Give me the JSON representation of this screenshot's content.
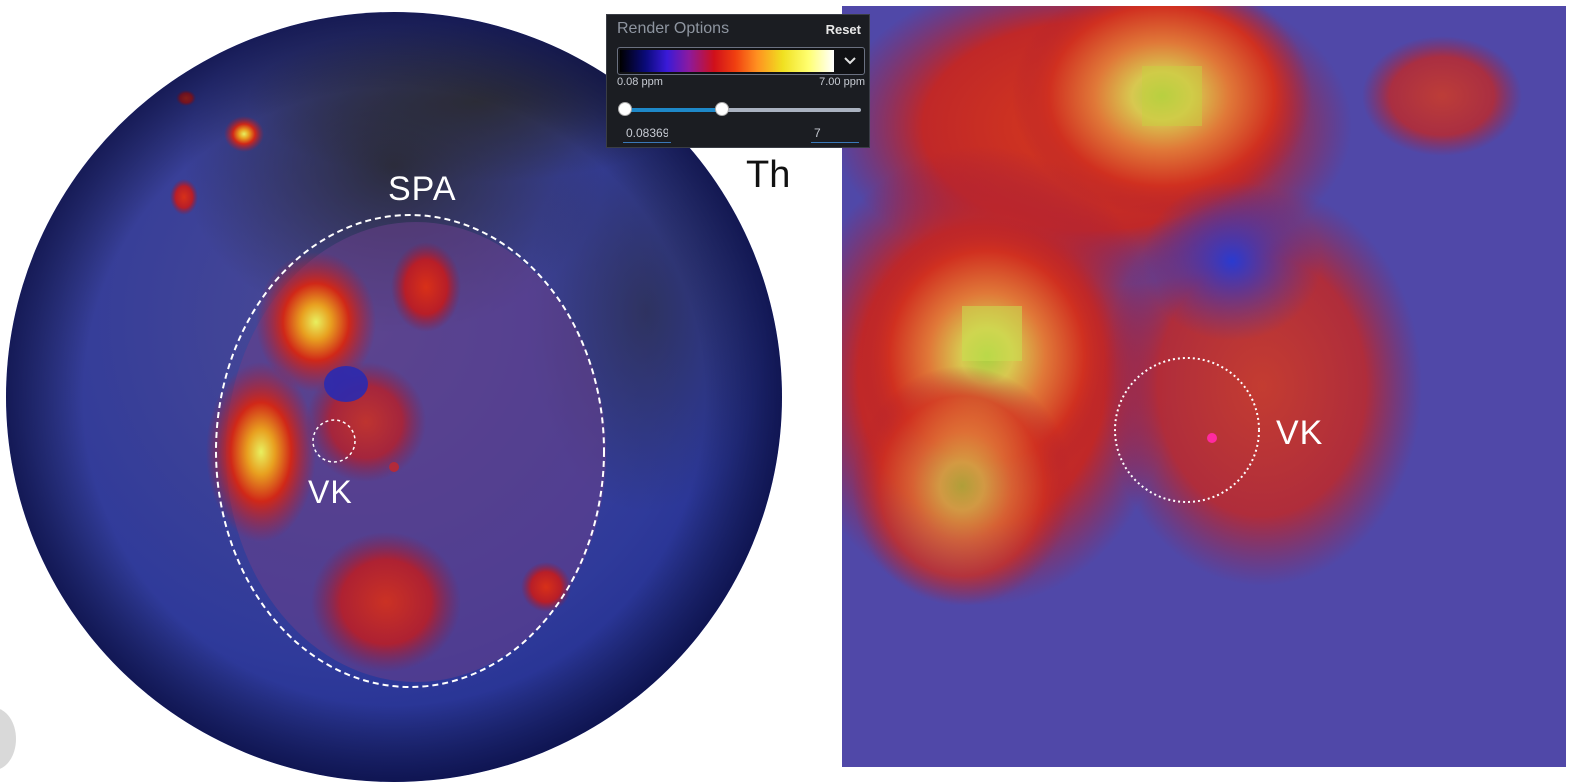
{
  "render_options": {
    "title": "Render Options",
    "reset_label": "Reset",
    "colormap_name": "thermal-gradient",
    "range_min_label": "0.08 ppm",
    "range_max_label": "7.00 ppm",
    "slider_low_fraction": 0.0,
    "slider_high_fraction": 0.41,
    "min_value": "0.08369",
    "max_value": "7",
    "dropdown_icon": "chevron-down-icon"
  },
  "overlay_labels": {
    "element": "Th",
    "basin": "SPA",
    "crater_left": "VK",
    "crater_right": "VK"
  },
  "colors": {
    "panel_bg": "#1b1d22",
    "slider_accent": "#1e88c8",
    "marker": "#ff2aa0"
  }
}
